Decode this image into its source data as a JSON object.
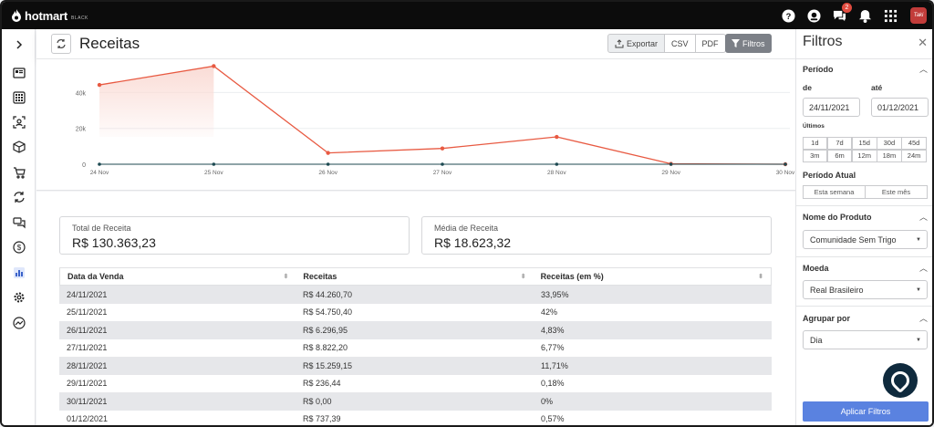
{
  "topbar": {
    "brand": "hotmart",
    "brand_tag": "BLACK",
    "notification_count": "2",
    "avatar_text": "Taki"
  },
  "header": {
    "title": "Receitas",
    "export_label": "Exportar",
    "csv_label": "CSV",
    "pdf_label": "PDF",
    "filters_label": "Filtros"
  },
  "chart_data": {
    "type": "area",
    "categories": [
      "24 Nov",
      "25 Nov",
      "26 Nov",
      "27 Nov",
      "28 Nov",
      "29 Nov",
      "30 Nov"
    ],
    "values": [
      44260.7,
      54750.4,
      6296.95,
      8822.2,
      15259.15,
      236.44,
      0.0
    ],
    "yticks": [
      "0",
      "20k",
      "40k"
    ],
    "ylim": [
      0,
      56000
    ],
    "grid": true,
    "colors": {
      "line": "#e85a42",
      "fill": "#fadcd6",
      "baseline": "#1d4a52"
    }
  },
  "cards": {
    "total_label": "Total de Receita",
    "total_value": "R$ 130.363,23",
    "avg_label": "Média de Receita",
    "avg_value": "R$ 18.623,32"
  },
  "table": {
    "headers": [
      "Data da Venda",
      "Receitas",
      "Receitas (em %)"
    ],
    "rows": [
      [
        "24/11/2021",
        "R$ 44.260,70",
        "33,95%"
      ],
      [
        "25/11/2021",
        "R$ 54.750,40",
        "42%"
      ],
      [
        "26/11/2021",
        "R$ 6.296,95",
        "4,83%"
      ],
      [
        "27/11/2021",
        "R$ 8.822,20",
        "6,77%"
      ],
      [
        "28/11/2021",
        "R$ 15.259,15",
        "11,71%"
      ],
      [
        "29/11/2021",
        "R$ 236,44",
        "0,18%"
      ],
      [
        "30/11/2021",
        "R$ 0,00",
        "0%"
      ],
      [
        "01/12/2021",
        "R$ 737,39",
        "0,57%"
      ]
    ]
  },
  "filters": {
    "title": "Filtros",
    "periodo": "Período",
    "de": "de",
    "ate": "até",
    "date_from": "24/11/2021",
    "date_to": "01/12/2021",
    "ultimos": "Últimos",
    "quick": [
      "1d",
      "7d",
      "15d",
      "30d",
      "45d",
      "3m",
      "6m",
      "12m",
      "18m",
      "24m"
    ],
    "periodo_atual": "Período Atual",
    "esta_semana": "Esta semana",
    "este_mes": "Este mês",
    "produto_label": "Nome do Produto",
    "produto_value": "Comunidade Sem Trigo",
    "moeda_label": "Moeda",
    "moeda_value": "Real Brasileiro",
    "agrupar_label": "Agrupar por",
    "agrupar_value": "Dia",
    "apply_label": "Aplicar Filtros"
  }
}
